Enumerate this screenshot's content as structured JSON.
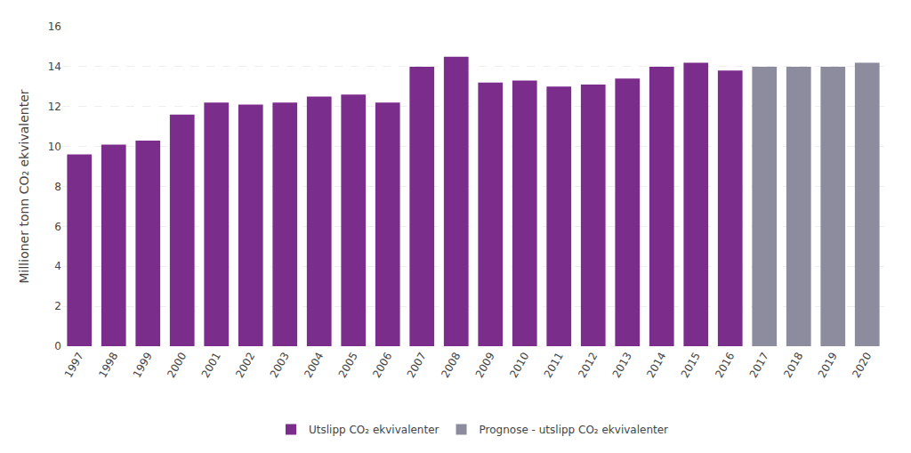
{
  "chart_data": {
    "type": "bar",
    "ylabel": "Millioner tonn CO₂ ekvivalenter",
    "categories": [
      "1997",
      "1998",
      "1999",
      "2000",
      "2001",
      "2002",
      "2003",
      "2004",
      "2005",
      "2006",
      "2007",
      "2008",
      "2009",
      "2010",
      "2011",
      "2012",
      "2013",
      "2014",
      "2015",
      "2016",
      "2017",
      "2018",
      "2019",
      "2020"
    ],
    "series": [
      {
        "name": "Utslipp CO₂ ekvivalenter",
        "color": "#7B2D8B",
        "values": [
          9.6,
          10.1,
          10.3,
          11.6,
          12.2,
          12.1,
          12.2,
          12.5,
          12.6,
          12.2,
          14.0,
          14.5,
          13.2,
          13.3,
          13.0,
          13.1,
          13.4,
          14.0,
          14.2,
          13.8,
          null,
          null,
          null,
          null
        ]
      },
      {
        "name": "Prognose - utslipp CO₂ ekvivalenter",
        "color": "#8C8C9E",
        "values": [
          null,
          null,
          null,
          null,
          null,
          null,
          null,
          null,
          null,
          null,
          null,
          null,
          null,
          null,
          null,
          null,
          null,
          null,
          null,
          null,
          14.0,
          14.0,
          14.0,
          14.2
        ]
      }
    ],
    "ylim": [
      0,
      16
    ],
    "yticks": [
      0,
      2,
      4,
      6,
      8,
      10,
      12,
      14,
      16
    ],
    "grid": true,
    "legend": "bottom"
  }
}
